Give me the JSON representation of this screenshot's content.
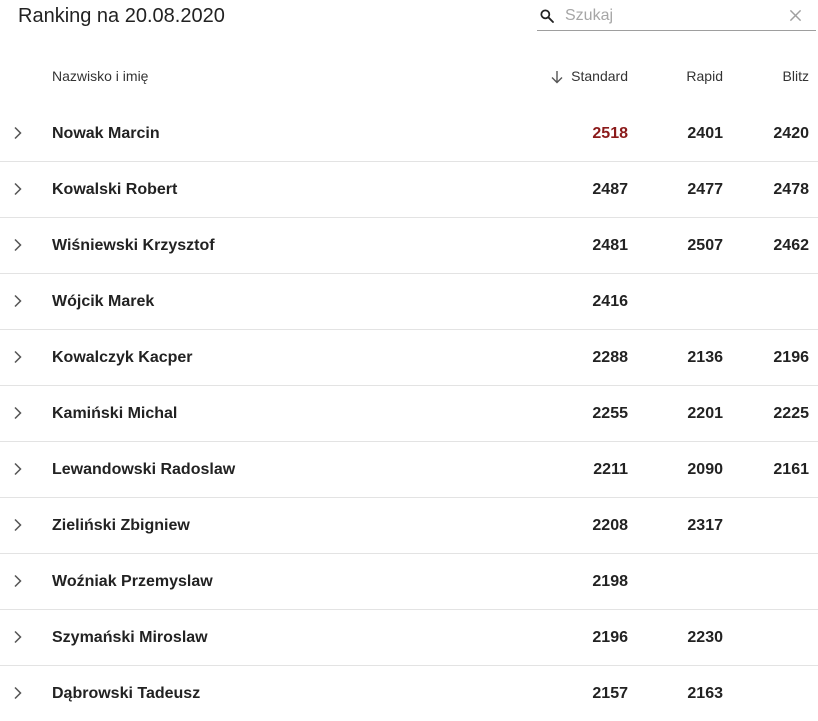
{
  "title": "Ranking na 20.08.2020",
  "search": {
    "placeholder": "Szukaj",
    "value": "",
    "icon": "search-icon",
    "clear_icon": "close-icon"
  },
  "table": {
    "columns": {
      "name": "Nazwisko i imię",
      "standard": "Standard",
      "rapid": "Rapid",
      "blitz": "Blitz"
    },
    "sort_column": "standard",
    "sort_direction": "descending",
    "highlight_color": "#8b1a1a",
    "rows": [
      {
        "name": "Nowak Marcin",
        "standard": "2518",
        "rapid": "2401",
        "blitz": "2420",
        "highlight": "standard"
      },
      {
        "name": "Kowalski Robert",
        "standard": "2487",
        "rapid": "2477",
        "blitz": "2478"
      },
      {
        "name": "Wiśniewski Krzysztof",
        "standard": "2481",
        "rapid": "2507",
        "blitz": "2462"
      },
      {
        "name": "Wójcik Marek",
        "standard": "2416",
        "rapid": "",
        "blitz": ""
      },
      {
        "name": "Kowalczyk Kacper",
        "standard": "2288",
        "rapid": "2136",
        "blitz": "2196"
      },
      {
        "name": "Kamiński Michal",
        "standard": "2255",
        "rapid": "2201",
        "blitz": "2225"
      },
      {
        "name": "Lewandowski Radoslaw",
        "standard": "2211",
        "rapid": "2090",
        "blitz": "2161"
      },
      {
        "name": "Zieliński Zbigniew",
        "standard": "2208",
        "rapid": "2317",
        "blitz": ""
      },
      {
        "name": "Woźniak Przemyslaw",
        "standard": "2198",
        "rapid": "",
        "blitz": ""
      },
      {
        "name": "Szymański Miroslaw",
        "standard": "2196",
        "rapid": "2230",
        "blitz": ""
      },
      {
        "name": "Dąbrowski Tadeusz",
        "standard": "2157",
        "rapid": "2163",
        "blitz": ""
      }
    ]
  }
}
